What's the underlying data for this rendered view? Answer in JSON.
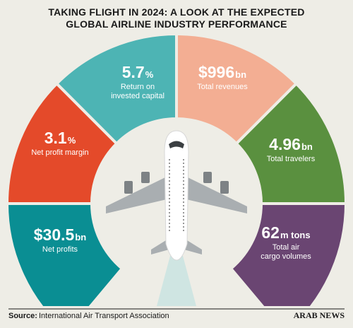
{
  "title_lines": [
    "TAKING FLIGHT IN 2024: A LOOK AT THE EXPECTED",
    "GLOBAL AIRLINE INDUSTRY PERFORMANCE"
  ],
  "segments": [
    {
      "value": "5.7",
      "unit": "%",
      "label": [
        "Return on",
        "invested capital"
      ],
      "color": "#4db4b4"
    },
    {
      "value": "$996",
      "unit": "bn",
      "label": [
        "Total revenues"
      ],
      "color": "#f3ae93"
    },
    {
      "value": "3.1",
      "unit": "%",
      "label": [
        "Net profit margin"
      ],
      "color": "#e44a2a"
    },
    {
      "value": "4.96",
      "unit": "bn",
      "label": [
        "Total travelers"
      ],
      "color": "#5a903f"
    },
    {
      "value": "$30.5",
      "unit": "bn",
      "label": [
        "Net profits"
      ],
      "color": "#0a8e93"
    },
    {
      "value": "62",
      "unit": "m tons",
      "label": [
        "Total air",
        "cargo volumes"
      ],
      "color": "#6a4572"
    }
  ],
  "source": {
    "label": "Source:",
    "text": "International Air Transport Association"
  },
  "logo": "ARAB NEWS"
}
